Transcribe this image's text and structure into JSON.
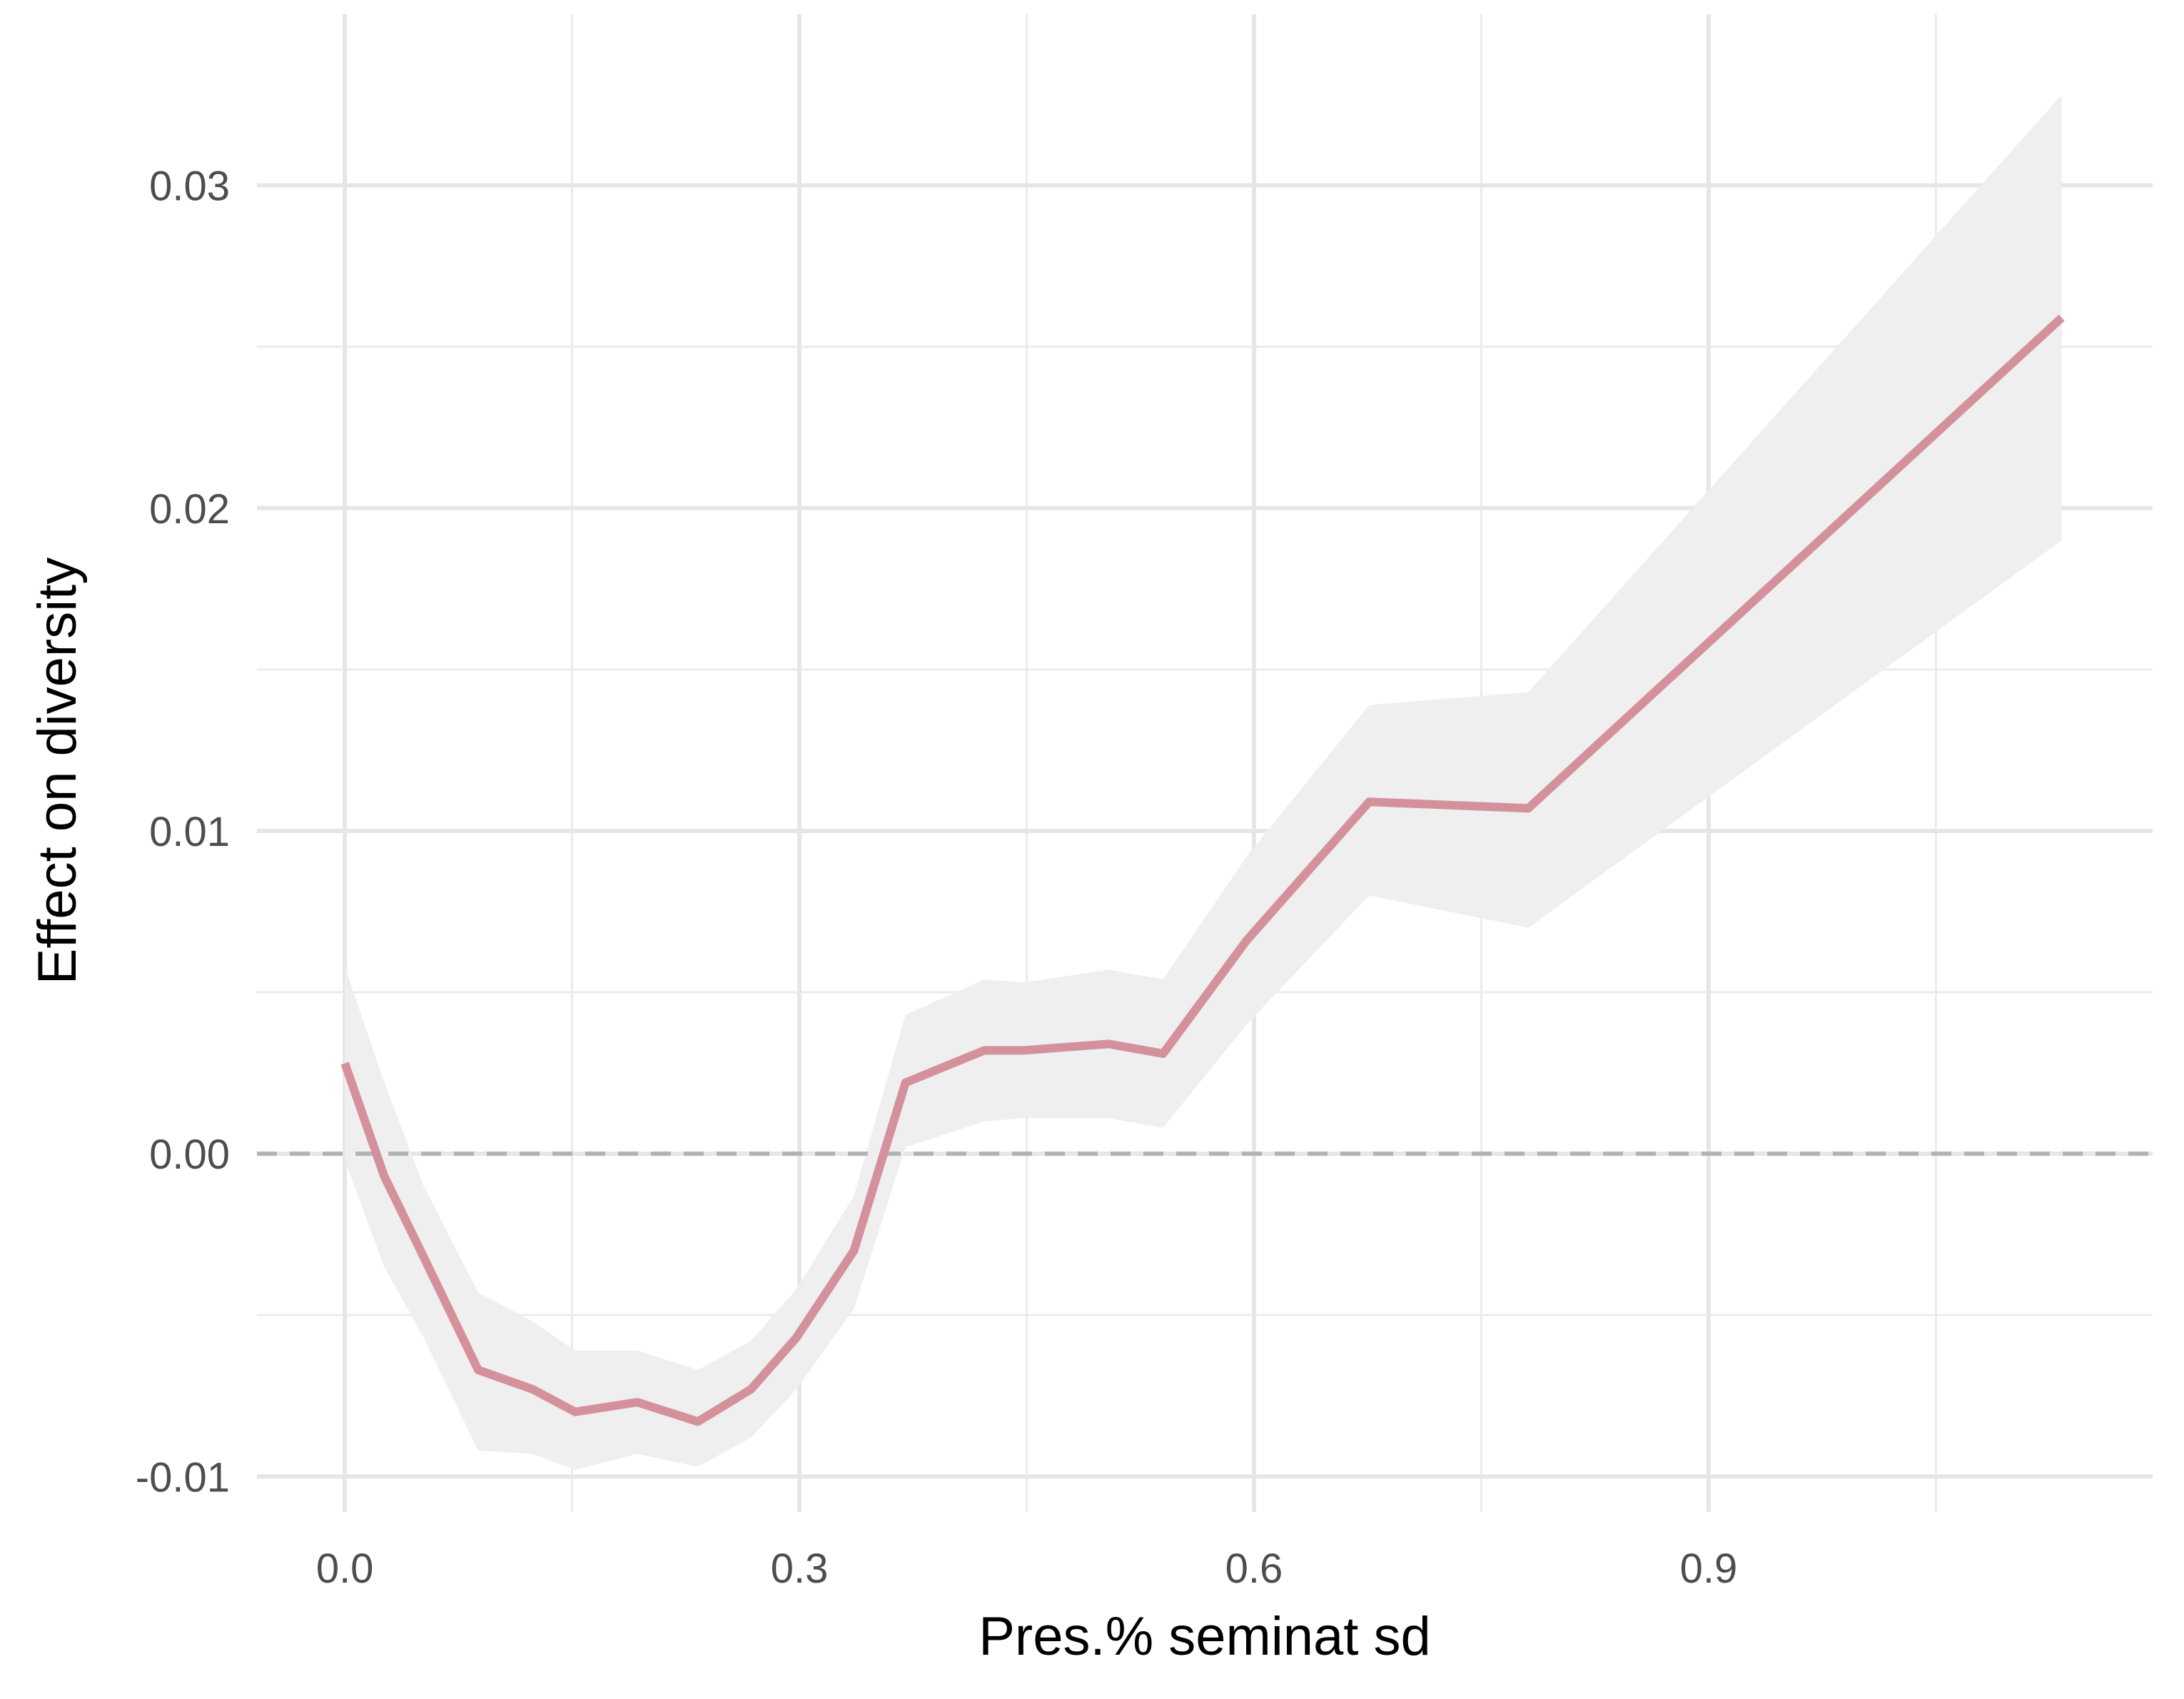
{
  "chart_data": {
    "type": "line",
    "title": "",
    "xlabel": "Pres.% seminat sd",
    "ylabel": "Effect on diversity",
    "xlim": [
      -0.058,
      1.193
    ],
    "ylim": [
      -0.0111,
      0.0353
    ],
    "x_ticks": [
      0.0,
      0.3,
      0.6,
      0.9
    ],
    "x_tick_labels": [
      "0.0",
      "0.3",
      "0.6",
      "0.9"
    ],
    "x_minor_ticks": [
      0.15,
      0.45,
      0.75,
      1.05
    ],
    "y_ticks": [
      -0.01,
      0.0,
      0.01,
      0.02,
      0.03
    ],
    "y_tick_labels": [
      "-0.01",
      "0.00",
      "0.01",
      "0.02",
      "0.03"
    ],
    "y_minor_ticks": [
      -0.005,
      0.005,
      0.015,
      0.025
    ],
    "grid": true,
    "reference_line": {
      "y": 0.0,
      "style": "dashed",
      "color": "#b3b3b3"
    },
    "series": [
      {
        "color": "#d4919c",
        "band_color": "#efefef",
        "x": [
          0.0,
          0.026,
          0.052,
          0.088,
          0.124,
          0.152,
          0.193,
          0.233,
          0.268,
          0.298,
          0.336,
          0.37,
          0.422,
          0.448,
          0.504,
          0.54,
          0.595,
          0.676,
          0.781,
          1.133
        ],
        "y": [
          0.0028,
          -0.0007,
          -0.0032,
          -0.0067,
          -0.0073,
          -0.008,
          -0.0077,
          -0.0083,
          -0.0073,
          -0.0057,
          -0.003,
          0.0022,
          0.0032,
          0.0032,
          0.0034,
          0.0031,
          0.0066,
          0.0109,
          0.0107,
          0.0259
        ],
        "lower": [
          -0.0002,
          -0.0035,
          -0.0057,
          -0.0092,
          -0.0093,
          -0.0098,
          -0.0093,
          -0.0097,
          -0.0088,
          -0.0073,
          -0.0048,
          0.0002,
          0.001,
          0.0011,
          0.0011,
          0.0008,
          0.004,
          0.008,
          0.007,
          0.019
        ],
        "upper": [
          0.0058,
          0.0022,
          -0.001,
          -0.0043,
          -0.0052,
          -0.0061,
          -0.0061,
          -0.0067,
          -0.0058,
          -0.0042,
          -0.0013,
          0.0043,
          0.0054,
          0.0053,
          0.0057,
          0.0054,
          0.0092,
          0.0139,
          0.0143,
          0.0328
        ]
      }
    ]
  }
}
